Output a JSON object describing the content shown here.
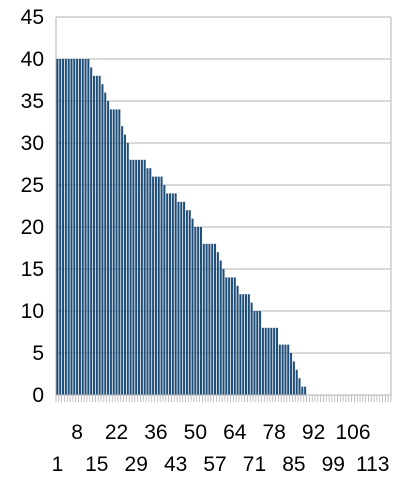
{
  "chart_data": {
    "type": "bar",
    "title": "",
    "xlabel": "",
    "ylabel": "",
    "ylim": [
      0,
      45
    ],
    "yticks": [
      0,
      5,
      10,
      15,
      20,
      25,
      30,
      35,
      40,
      45
    ],
    "xtick_labels_row1": [
      "8",
      "22",
      "36",
      "50",
      "64",
      "78",
      "92",
      "106"
    ],
    "xtick_labels_row2": [
      "1",
      "15",
      "29",
      "43",
      "57",
      "71",
      "85",
      "99",
      "113"
    ],
    "grid": "horizontal",
    "legend": "none",
    "bar_color": "#1f4e79",
    "categories": [
      1,
      2,
      3,
      4,
      5,
      6,
      7,
      8,
      9,
      10,
      11,
      12,
      13,
      14,
      15,
      16,
      17,
      18,
      19,
      20,
      21,
      22,
      23,
      24,
      25,
      26,
      27,
      28,
      29,
      30,
      31,
      32,
      33,
      34,
      35,
      36,
      37,
      38,
      39,
      40,
      41,
      42,
      43,
      44,
      45,
      46,
      47,
      48,
      49,
      50,
      51,
      52,
      53,
      54,
      55,
      56,
      57,
      58,
      59,
      60,
      61,
      62,
      63,
      64,
      65,
      66,
      67,
      68,
      69,
      70,
      71,
      72,
      73,
      74,
      75,
      76,
      77,
      78,
      79,
      80,
      81,
      82,
      83,
      84,
      85,
      86,
      87,
      88,
      89,
      90,
      91,
      92,
      93,
      94,
      95,
      96,
      97,
      98,
      99,
      100,
      101,
      102,
      103,
      104,
      105,
      106,
      107,
      108,
      109,
      110,
      111,
      112,
      113,
      114,
      115,
      116,
      117,
      118,
      119
    ],
    "values": [
      40,
      40,
      40,
      40,
      40,
      40,
      40,
      40,
      40,
      40,
      40,
      40,
      39,
      38,
      38,
      38,
      37,
      36,
      35,
      34,
      34,
      34,
      34,
      32,
      31,
      30,
      28,
      28,
      28,
      28,
      28,
      28,
      27,
      27,
      26,
      26,
      26,
      26,
      25,
      24,
      24,
      24,
      24,
      23,
      23,
      23,
      22,
      22,
      21,
      20,
      20,
      20,
      18,
      18,
      18,
      18,
      18,
      17,
      16,
      15,
      14,
      14,
      14,
      14,
      13,
      12,
      12,
      12,
      12,
      11,
      10,
      10,
      10,
      8,
      8,
      8,
      8,
      8,
      8,
      6,
      6,
      6,
      6,
      5,
      4,
      3,
      2,
      1,
      1,
      0,
      0,
      0,
      0,
      0,
      0,
      0,
      0,
      0,
      0,
      0,
      0,
      0,
      0,
      0,
      0,
      0,
      0,
      0,
      0,
      0,
      0,
      0,
      0,
      0,
      0,
      0,
      0,
      0,
      0
    ]
  }
}
